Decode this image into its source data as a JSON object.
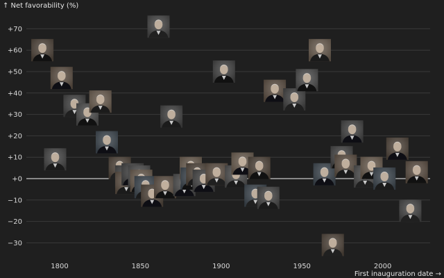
{
  "chart_data": {
    "type": "scatter",
    "title": "",
    "ylabel": "↑ Net favorability (%)",
    "xlabel": "First inauguration date →",
    "xlim": [
      1775,
      2030
    ],
    "ylim": [
      -37,
      77
    ],
    "xticks": [
      1800,
      1850,
      1900,
      1950,
      2000
    ],
    "xtick_labels": [
      "1800",
      "1850",
      "1900",
      "1950",
      "2000"
    ],
    "yticks": [
      70,
      60,
      50,
      40,
      30,
      20,
      10,
      0,
      -10,
      -20,
      -30
    ],
    "ytick_labels": [
      "+70",
      "+60",
      "+50",
      "+40",
      "+30",
      "+20",
      "+10",
      "+0",
      "−10",
      "−20",
      "−30"
    ],
    "grid": true,
    "marker": "portrait",
    "points": [
      {
        "x": 1789.3,
        "y": 60
      },
      {
        "x": 1797.2,
        "y": 9
      },
      {
        "x": 1801.2,
        "y": 47
      },
      {
        "x": 1809.2,
        "y": 34
      },
      {
        "x": 1817.2,
        "y": 30
      },
      {
        "x": 1825.2,
        "y": 36
      },
      {
        "x": 1829.2,
        "y": 17
      },
      {
        "x": 1837.2,
        "y": 5
      },
      {
        "x": 1841.2,
        "y": 1
      },
      {
        "x": 1841.3,
        "y": -2
      },
      {
        "x": 1845.2,
        "y": 2
      },
      {
        "x": 1849.2,
        "y": 1
      },
      {
        "x": 1850.5,
        "y": -1
      },
      {
        "x": 1853.2,
        "y": -4
      },
      {
        "x": 1857.2,
        "y": -8
      },
      {
        "x": 1861.2,
        "y": 71
      },
      {
        "x": 1865.3,
        "y": -4
      },
      {
        "x": 1869.2,
        "y": 29
      },
      {
        "x": 1877.2,
        "y": -3
      },
      {
        "x": 1881.2,
        "y": 5
      },
      {
        "x": 1881.7,
        "y": 0
      },
      {
        "x": 1885.2,
        "y": 2
      },
      {
        "x": 1889.2,
        "y": -1
      },
      {
        "x": 1897.2,
        "y": 2
      },
      {
        "x": 1901.7,
        "y": 50
      },
      {
        "x": 1909.2,
        "y": 1
      },
      {
        "x": 1913.2,
        "y": 7
      },
      {
        "x": 1921.2,
        "y": -8
      },
      {
        "x": 1923.6,
        "y": 5
      },
      {
        "x": 1929.2,
        "y": -9
      },
      {
        "x": 1933.2,
        "y": 41
      },
      {
        "x": 1945.3,
        "y": 37
      },
      {
        "x": 1953.1,
        "y": 46
      },
      {
        "x": 1961.1,
        "y": 60
      },
      {
        "x": 1963.9,
        "y": 2
      },
      {
        "x": 1969.1,
        "y": -31
      },
      {
        "x": 1974.6,
        "y": 10
      },
      {
        "x": 1977.1,
        "y": 6
      },
      {
        "x": 1981.1,
        "y": 22
      },
      {
        "x": 1989.1,
        "y": 1
      },
      {
        "x": 1993.1,
        "y": 5
      },
      {
        "x": 2001.1,
        "y": 0
      },
      {
        "x": 2009.1,
        "y": 14
      },
      {
        "x": 2017.1,
        "y": -15
      },
      {
        "x": 2021.1,
        "y": 3
      }
    ]
  }
}
